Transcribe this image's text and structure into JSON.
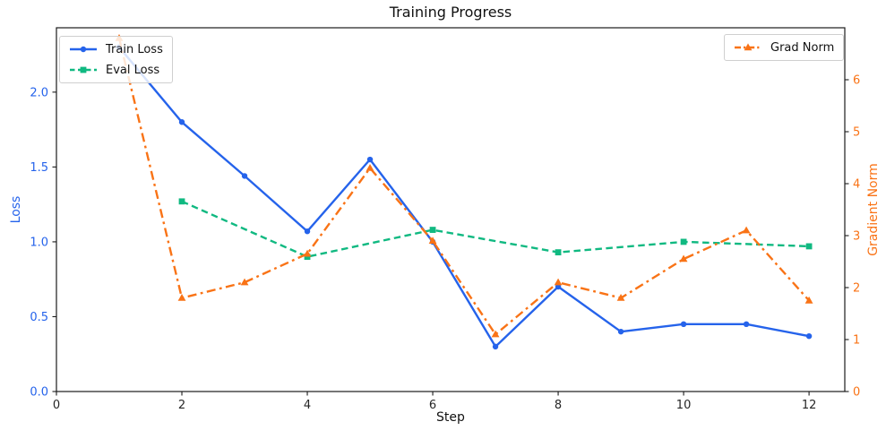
{
  "chart_data": {
    "type": "line",
    "title": "Training Progress",
    "xlabel": "Step",
    "ylabel_left": "Loss",
    "ylabel_right": "Gradient Norm",
    "grid": false,
    "xlim": [
      0,
      12.57
    ],
    "ylim_left": [
      0,
      2.43
    ],
    "ylim_right": [
      0,
      7
    ],
    "xticks": {
      "values": [
        0,
        2,
        4,
        6,
        8,
        10,
        12
      ],
      "labels": [
        "0",
        "2",
        "4",
        "6",
        "8",
        "10",
        "12"
      ]
    },
    "yticks_left": {
      "values": [
        0,
        0.5,
        1.0,
        1.5,
        2.0
      ],
      "labels": [
        "0.0",
        "0.5",
        "1.0",
        "1.5",
        "2.0"
      ]
    },
    "yticks_right": {
      "values": [
        0,
        1,
        2,
        3,
        4,
        5,
        6
      ],
      "labels": [
        "0",
        "1",
        "2",
        "3",
        "4",
        "5",
        "6"
      ]
    },
    "axis_colors": {
      "left": "#2563eb",
      "right": "#f97316",
      "x": "#262626",
      "spine": "#1a1a1a"
    },
    "series": [
      {
        "name": "Train Loss",
        "axis": "left",
        "color": "#2563eb",
        "style": "solid",
        "marker": "circle",
        "x": [
          1,
          2,
          3,
          4,
          5,
          6,
          7,
          8,
          9,
          10,
          11,
          12
        ],
        "y": [
          2.3,
          1.8,
          1.44,
          1.07,
          1.55,
          1.0,
          0.3,
          0.7,
          0.4,
          0.45,
          0.45,
          0.37
        ]
      },
      {
        "name": "Eval Loss",
        "axis": "left",
        "color": "#10b981",
        "style": "dashed",
        "marker": "square",
        "x": [
          2,
          4,
          6,
          8,
          10,
          12
        ],
        "y": [
          1.27,
          0.9,
          1.08,
          0.93,
          1.0,
          0.97
        ]
      },
      {
        "name": "Grad Norm",
        "axis": "right",
        "color": "#f97316",
        "style": "dashdot",
        "marker": "triangle-up",
        "x": [
          1,
          2,
          3,
          4,
          5,
          6,
          7,
          8,
          9,
          10,
          11,
          12
        ],
        "y": [
          6.8,
          1.8,
          2.1,
          2.65,
          4.3,
          2.9,
          1.1,
          2.1,
          1.8,
          2.55,
          3.1,
          1.75
        ]
      }
    ],
    "legends": {
      "loss_legend_position": "upper-left",
      "grad_legend_position": "upper-right"
    }
  }
}
